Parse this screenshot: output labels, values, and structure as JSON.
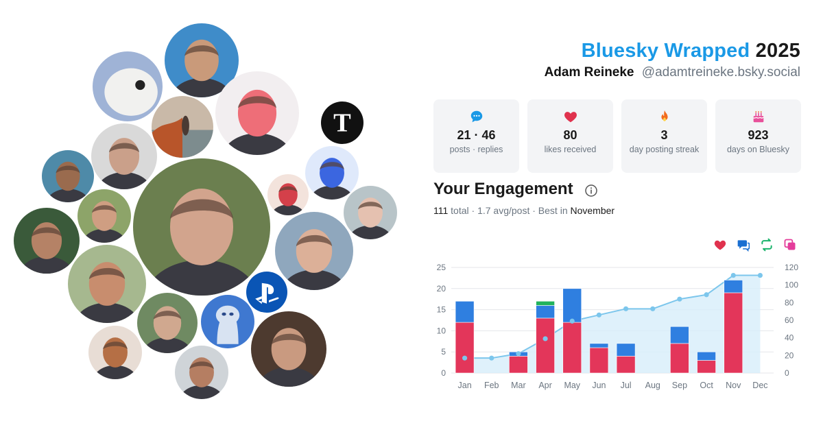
{
  "header": {
    "brand": "Bluesky Wrapped",
    "year": "2025",
    "display_name": "Adam Reineke",
    "handle": "@adamtreineke.bsky.social"
  },
  "stats": [
    {
      "icon": "speech-bubble-icon",
      "value": "21 · 46",
      "label": "posts · replies",
      "color": "#1a99e6"
    },
    {
      "icon": "heart-icon",
      "value": "80",
      "label": "likes received",
      "color": "#e0324e"
    },
    {
      "icon": "flame-icon",
      "value": "3",
      "label": "day posting streak",
      "color": "#f26b1d"
    },
    {
      "icon": "cake-icon",
      "value": "923",
      "label": "days on Bluesky",
      "color": "#e8509a"
    }
  ],
  "engagement": {
    "heading": "Your Engagement",
    "total_value": "111",
    "total_word": "total",
    "avg": "· 1.7 avg/post · Best in",
    "best_month": "November"
  },
  "legend_toggles": [
    {
      "icon": "heart-icon",
      "color": "#e0324e"
    },
    {
      "icon": "reply-icon",
      "color": "#1a6fd1"
    },
    {
      "icon": "repost-icon",
      "color": "#19b36b"
    },
    {
      "icon": "quote-icon",
      "color": "#e43d9b"
    }
  ],
  "colors": {
    "likes": "#e3365a",
    "replies": "#2f7fe0",
    "reposts": "#22b35d",
    "cumulative_line": "#7cc6ec",
    "cumulative_fill": "#d7eefa"
  },
  "chart_data": {
    "type": "bar",
    "categories": [
      "Jan",
      "Feb",
      "Mar",
      "Apr",
      "May",
      "Jun",
      "Jul",
      "Aug",
      "Sep",
      "Oct",
      "Nov",
      "Dec"
    ],
    "series": [
      {
        "values": [
          12,
          0,
          4,
          13,
          12,
          6,
          4,
          0,
          7,
          3,
          19,
          0
        ]
      },
      {
        "values": [
          5,
          0,
          1,
          3,
          8,
          1,
          3,
          0,
          4,
          2,
          3,
          0
        ]
      },
      {
        "values": [
          0,
          0,
          0,
          1,
          0,
          0,
          0,
          0,
          0,
          0,
          0,
          0
        ]
      },
      {
        "type": "line",
        "axis": "right",
        "values": [
          17,
          17,
          22,
          39,
          59,
          66,
          73,
          73,
          84,
          89,
          111,
          111
        ]
      }
    ],
    "ylim": [
      0,
      25
    ],
    "y_ticks": [
      "0",
      "5",
      "10",
      "15",
      "20",
      "25"
    ],
    "y2lim": [
      0,
      120
    ],
    "y2_ticks": [
      "0",
      "20",
      "40",
      "60",
      "80",
      "100",
      "120"
    ],
    "grid": true
  },
  "avatars": [
    {
      "name": "avatar-seal-plush",
      "bg": "#9fb3d6",
      "fg": "#f1f1ef"
    },
    {
      "name": "avatar-man-green-forest",
      "bg": "#3f8cc9",
      "fg": "#c99a7a"
    },
    {
      "name": "avatar-woman-pink-hair",
      "bg": "#f2eef0",
      "fg": "#ee6e78"
    },
    {
      "name": "avatar-nytimes-logo",
      "bg": "#111111",
      "fg": "#ffffff"
    },
    {
      "name": "avatar-autumn-lake",
      "bg": "#c9b9a8",
      "fg": "#b8552a"
    },
    {
      "name": "avatar-bald-man-glasses",
      "bg": "#d9d9d9",
      "fg": "#caa08a"
    },
    {
      "name": "avatar-man-outdoors",
      "bg": "#4e8aa8",
      "fg": "#9a6b4e"
    },
    {
      "name": "avatar-woman-glasses-blue",
      "bg": "#dfe9fb",
      "fg": "#3b66e0"
    },
    {
      "name": "avatar-main-user",
      "bg": "#6b7f4f",
      "fg": "#d2a48d"
    },
    {
      "name": "avatar-red-hat",
      "bg": "#f3e3dc",
      "fg": "#d4404a"
    },
    {
      "name": "avatar-woman-glasses-dark",
      "bg": "#b8c4c8",
      "fg": "#e5c1b0"
    },
    {
      "name": "avatar-man-curly-glasses",
      "bg": "#8da469",
      "fg": "#cf9e82"
    },
    {
      "name": "avatar-man-tattoo",
      "bg": "#3a5a3a",
      "fg": "#b58266"
    },
    {
      "name": "avatar-bald-man-city",
      "bg": "#8fa7bd",
      "fg": "#dcb098"
    },
    {
      "name": "avatar-playstation-logo",
      "bg": "#0a55b5",
      "fg": "#ffffff"
    },
    {
      "name": "avatar-woman-mirror",
      "bg": "#a6b88f",
      "fg": "#c88d6e"
    },
    {
      "name": "avatar-man-goatee",
      "bg": "#6f8a62",
      "fg": "#d0a88f"
    },
    {
      "name": "avatar-cartoon-creature",
      "bg": "#3f78d0",
      "fg": "#d8e3f2"
    },
    {
      "name": "avatar-woman-dark-hair",
      "bg": "#4d3a2f",
      "fg": "#c99a80"
    },
    {
      "name": "avatar-woman-curly",
      "bg": "#e8ddd5",
      "fg": "#b56f45"
    },
    {
      "name": "avatar-man-beanie",
      "bg": "#cfd4d8",
      "fg": "#b57e62"
    }
  ]
}
